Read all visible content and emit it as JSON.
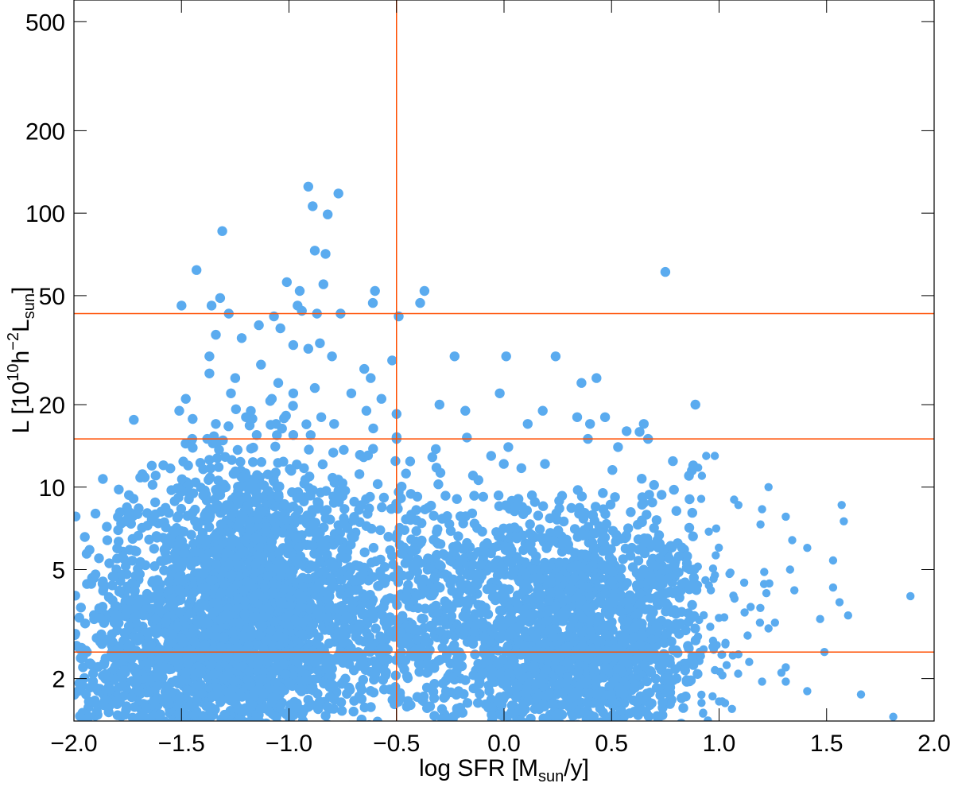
{
  "chart_data": {
    "type": "scatter",
    "xlabel": {
      "main": "log SFR [M",
      "sub": "sun",
      "tail": "/y]"
    },
    "ylabel": {
      "main": "L [10",
      "sup1": "10",
      "mid": "h",
      "sup2": "−2",
      "tail": "L",
      "sub": "sun",
      "close": "]"
    },
    "xlim": [
      -2.0,
      2.0
    ],
    "ylim": [
      1.4,
      600
    ],
    "yscale": "log",
    "x_ticks": [
      -2.0,
      -1.5,
      -1.0,
      -0.5,
      0.0,
      0.5,
      1.0,
      1.5,
      2.0
    ],
    "x_tick_labels": [
      "−2.0",
      "−1.5",
      "−1.0",
      "−0.5",
      "0.0",
      "0.5",
      "1.0",
      "1.5",
      "2.0"
    ],
    "y_ticks": [
      2,
      5,
      10,
      20,
      50,
      100,
      200,
      500
    ],
    "y_tick_labels": [
      "2",
      "5",
      "10",
      "20",
      "50",
      "100",
      "200",
      "500"
    ],
    "grid": false,
    "marker_color": "#5aabef",
    "line_color": "#ff4d00",
    "reference_lines": {
      "vertical_x": [
        -0.5
      ],
      "horizontal_y": [
        43,
        15,
        2.5
      ]
    },
    "points": [
      [
        -0.91,
        125
      ],
      [
        -0.89,
        106
      ],
      [
        -0.77,
        118
      ],
      [
        -0.82,
        99
      ],
      [
        -1.31,
        86
      ],
      [
        -0.88,
        73
      ],
      [
        -0.83,
        71
      ],
      [
        -1.43,
        62
      ],
      [
        0.75,
        61
      ],
      [
        -1.01,
        56
      ],
      [
        -0.95,
        52
      ],
      [
        -0.6,
        52
      ],
      [
        -0.37,
        52
      ],
      [
        -0.84,
        55
      ],
      [
        -1.32,
        49
      ],
      [
        -0.61,
        47
      ],
      [
        -0.39,
        47
      ],
      [
        -1.5,
        46
      ],
      [
        -1.36,
        46
      ],
      [
        -0.96,
        46
      ],
      [
        -0.76,
        43
      ],
      [
        -1.28,
        43
      ],
      [
        -1.07,
        42
      ],
      [
        -0.87,
        43
      ],
      [
        -0.49,
        42
      ],
      [
        -0.94,
        44
      ],
      [
        -1.14,
        39
      ],
      [
        -1.04,
        38
      ],
      [
        -1.34,
        36
      ],
      [
        -1.22,
        35
      ],
      [
        -0.98,
        33
      ],
      [
        -1.37,
        30
      ],
      [
        -1.13,
        28
      ],
      [
        -0.91,
        32
      ],
      [
        -0.8,
        30
      ],
      [
        -0.65,
        27
      ],
      [
        -0.52,
        29
      ],
      [
        -0.23,
        30
      ],
      [
        0.01,
        30
      ],
      [
        0.24,
        30
      ],
      [
        -1.37,
        26
      ],
      [
        -1.25,
        25
      ],
      [
        -1.05,
        24
      ],
      [
        -0.88,
        23
      ],
      [
        -0.62,
        25
      ],
      [
        0.43,
        25
      ],
      [
        0.36,
        24
      ],
      [
        -1.27,
        22
      ],
      [
        -1.08,
        21
      ],
      [
        -0.98,
        22
      ],
      [
        -0.71,
        22
      ],
      [
        -0.57,
        21
      ],
      [
        -1.48,
        21
      ],
      [
        -0.02,
        22
      ],
      [
        -0.3,
        20
      ],
      [
        -1.51,
        19
      ],
      [
        -0.18,
        19
      ],
      [
        0.18,
        19
      ],
      [
        0.89,
        20
      ],
      [
        -1.2,
        18
      ],
      [
        -0.85,
        18
      ],
      [
        -0.64,
        19
      ],
      [
        -0.5,
        18.5
      ],
      [
        0.47,
        18
      ],
      [
        0.34,
        18
      ],
      [
        -1.34,
        17
      ],
      [
        -1.06,
        17
      ],
      [
        -0.79,
        17
      ],
      [
        0.65,
        17
      ],
      [
        0.11,
        17
      ],
      [
        0.4,
        17
      ],
      [
        -1.45,
        15
      ],
      [
        -1.38,
        15
      ],
      [
        -1.15,
        15.5
      ],
      [
        -0.98,
        15.5
      ],
      [
        -0.5,
        15
      ],
      [
        0.39,
        15
      ],
      [
        0.57,
        16
      ],
      [
        0.67,
        15
      ],
      [
        0.53,
        14
      ],
      [
        0.02,
        14
      ],
      [
        -0.06,
        13
      ],
      [
        0.98,
        13
      ],
      [
        0.94,
        13
      ],
      [
        0.88,
        12
      ],
      [
        0.86,
        11
      ],
      [
        0.92,
        11
      ],
      [
        1.07,
        9
      ],
      [
        1.23,
        10
      ],
      [
        1.09,
        8.6
      ],
      [
        1.2,
        8.3
      ],
      [
        1.31,
        7.8
      ],
      [
        1.57,
        8.6
      ],
      [
        1.58,
        7.5
      ],
      [
        1.34,
        6.4
      ],
      [
        1.41,
        6
      ],
      [
        1.53,
        5.4
      ],
      [
        1.21,
        4.9
      ],
      [
        1.33,
        5
      ],
      [
        1.53,
        4.3
      ],
      [
        1.35,
        4.2
      ],
      [
        1.22,
        4.1
      ],
      [
        1.56,
        3.8
      ],
      [
        1.89,
        4
      ],
      [
        1.6,
        3.4
      ],
      [
        1.47,
        3.3
      ],
      [
        1.49,
        2.5
      ],
      [
        1.31,
        2.2
      ],
      [
        1.29,
        2.1
      ],
      [
        1.31,
        1.95
      ],
      [
        1.41,
        1.8
      ],
      [
        1.2,
        1.95
      ],
      [
        1.66,
        1.75
      ],
      [
        1.81,
        1.45
      ],
      [
        1.06,
        1.55
      ],
      [
        1.0,
        1.65
      ],
      [
        1.14,
        2.3
      ],
      [
        1.09,
        2.45
      ],
      [
        1.03,
        2.7
      ],
      [
        1.19,
        3.2
      ],
      [
        1.23,
        3.05
      ],
      [
        1.26,
        3.2
      ],
      [
        -1.9,
        8
      ],
      [
        -1.9,
        4.8
      ],
      [
        -1.95,
        2.5
      ],
      [
        -1.98,
        1.8
      ],
      [
        -1.96,
        1.5
      ],
      [
        -1.93,
        1.45
      ]
    ],
    "clusters": [
      {
        "cx": -1.22,
        "cy": 4.0,
        "sx": 0.22,
        "sy": 0.62,
        "n": 1500
      },
      {
        "cx": -1.55,
        "cy": 2.1,
        "sx": 0.22,
        "sy": 0.35,
        "n": 520
      },
      {
        "cx": -1.05,
        "cy": 3.0,
        "sx": 0.3,
        "sy": 0.5,
        "n": 600
      },
      {
        "cx": -0.72,
        "cy": 3.2,
        "sx": 0.3,
        "sy": 0.55,
        "n": 420
      },
      {
        "cx": -0.25,
        "cy": 3.4,
        "sx": 0.28,
        "sy": 0.5,
        "n": 380
      },
      {
        "cx": 0.28,
        "cy": 2.1,
        "sx": 0.24,
        "sy": 0.42,
        "n": 950
      },
      {
        "cx": 0.45,
        "cy": 3.6,
        "sx": 0.25,
        "sy": 0.45,
        "n": 420
      },
      {
        "cx": 0.2,
        "cy": 5.5,
        "sx": 0.35,
        "sy": 0.35,
        "n": 260
      },
      {
        "cx": 0.7,
        "cy": 3.2,
        "sx": 0.18,
        "sy": 0.45,
        "n": 230
      },
      {
        "cx": -1.75,
        "cy": 3.5,
        "sx": 0.15,
        "sy": 0.55,
        "n": 200
      }
    ]
  }
}
